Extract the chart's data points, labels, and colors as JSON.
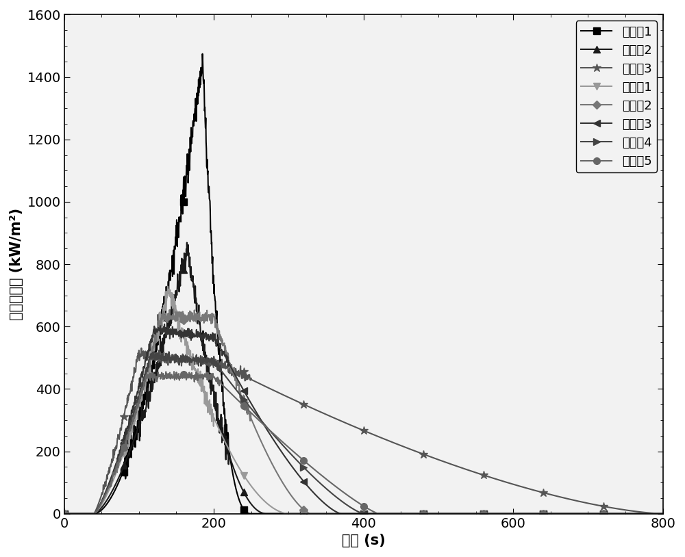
{
  "title": "",
  "xlabel": "时间 (s)",
  "ylabel": "热释放速率 (kW/m²)",
  "xlim": [
    0,
    800
  ],
  "ylim": [
    0,
    1600
  ],
  "yticks": [
    0,
    200,
    400,
    600,
    800,
    1000,
    1200,
    1400,
    1600
  ],
  "xticks": [
    0,
    200,
    400,
    600,
    800
  ],
  "background_color": "#ffffff",
  "plot_bg_color": "#f0f0f0",
  "legend_fontsize": 13,
  "axis_fontsize": 15,
  "tick_fontsize": 14
}
